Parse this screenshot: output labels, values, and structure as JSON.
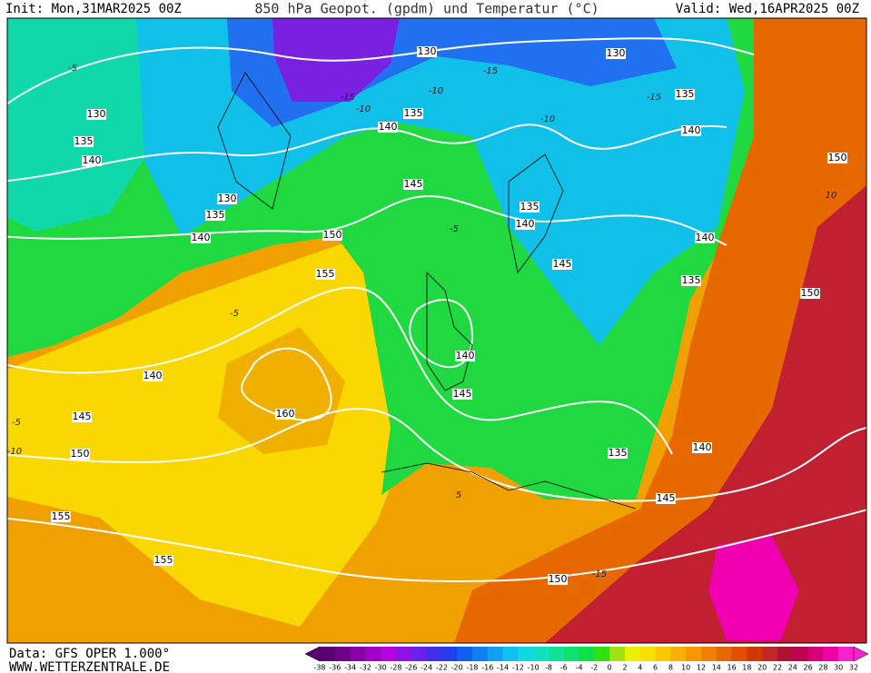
{
  "header": {
    "init": "Init: Mon,31MAR2025 00Z",
    "title": "850 hPa Geopot. (gpdm) und Temperatur (°C)",
    "valid": "Valid: Wed,16APR2025 00Z"
  },
  "map": {
    "geopotential_labels": [
      130,
      130,
      135,
      130,
      135,
      140,
      135,
      140,
      140,
      150,
      145,
      130,
      135,
      135,
      140,
      140,
      150,
      140,
      155,
      145,
      135,
      150,
      140,
      140,
      145,
      160,
      145,
      135,
      140,
      150,
      145,
      155,
      155,
      150
    ],
    "temperature_labels": [
      -5,
      -15,
      -10,
      -15,
      -10,
      -15,
      -10,
      5,
      -5,
      -5,
      -10,
      10,
      -5,
      -15
    ]
  },
  "footer": {
    "data": "Data: GFS OPER 1.000°",
    "site": "WWW.WETTERZENTRALE.DE"
  },
  "colorbar": {
    "ticks": [
      -38,
      -36,
      -34,
      -32,
      -30,
      -28,
      -26,
      -24,
      -22,
      -20,
      -18,
      -16,
      -14,
      -12,
      -10,
      -8,
      -6,
      -4,
      -2,
      0,
      2,
      4,
      6,
      8,
      10,
      12,
      14,
      16,
      18,
      20,
      22,
      24,
      26,
      28,
      30,
      32
    ],
    "colors": [
      "#5a0070",
      "#70008a",
      "#8800a8",
      "#a000c8",
      "#b800e0",
      "#9010e8",
      "#6a20f0",
      "#4030f0",
      "#2040f0",
      "#1060f0",
      "#1080f0",
      "#10a0f0",
      "#10c0f0",
      "#10d8e0",
      "#10e0c0",
      "#10e098",
      "#10e070",
      "#10e048",
      "#30e010",
      "#a0e010",
      "#e8f000",
      "#f8e000",
      "#f8c800",
      "#f8b000",
      "#f89800",
      "#f08000",
      "#e86800",
      "#e05000",
      "#d03800",
      "#c02828",
      "#b01030",
      "#c00050",
      "#d80078",
      "#f000a8",
      "#ff20d0"
    ]
  }
}
